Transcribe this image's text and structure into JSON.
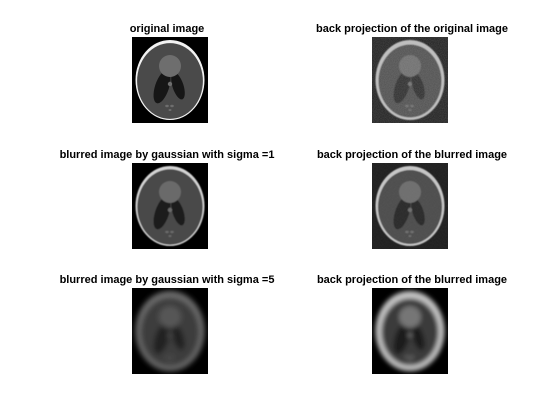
{
  "panels": [
    {
      "id": "orig",
      "title": "original image",
      "variant": "sharp"
    },
    {
      "id": "bp_orig",
      "title": "back projection of the original image",
      "variant": "bp_noisy"
    },
    {
      "id": "blur1",
      "title": "blurred image by gaussian with sigma =1",
      "variant": "blur1"
    },
    {
      "id": "bp_blur1",
      "title": "back projection of the blurred image",
      "variant": "bp_blur1"
    },
    {
      "id": "blur5",
      "title": "blurred image by gaussian with sigma =5",
      "variant": "blur5"
    },
    {
      "id": "bp_blur5",
      "title": "back projection of the blurred image",
      "variant": "bp_blur5"
    }
  ]
}
